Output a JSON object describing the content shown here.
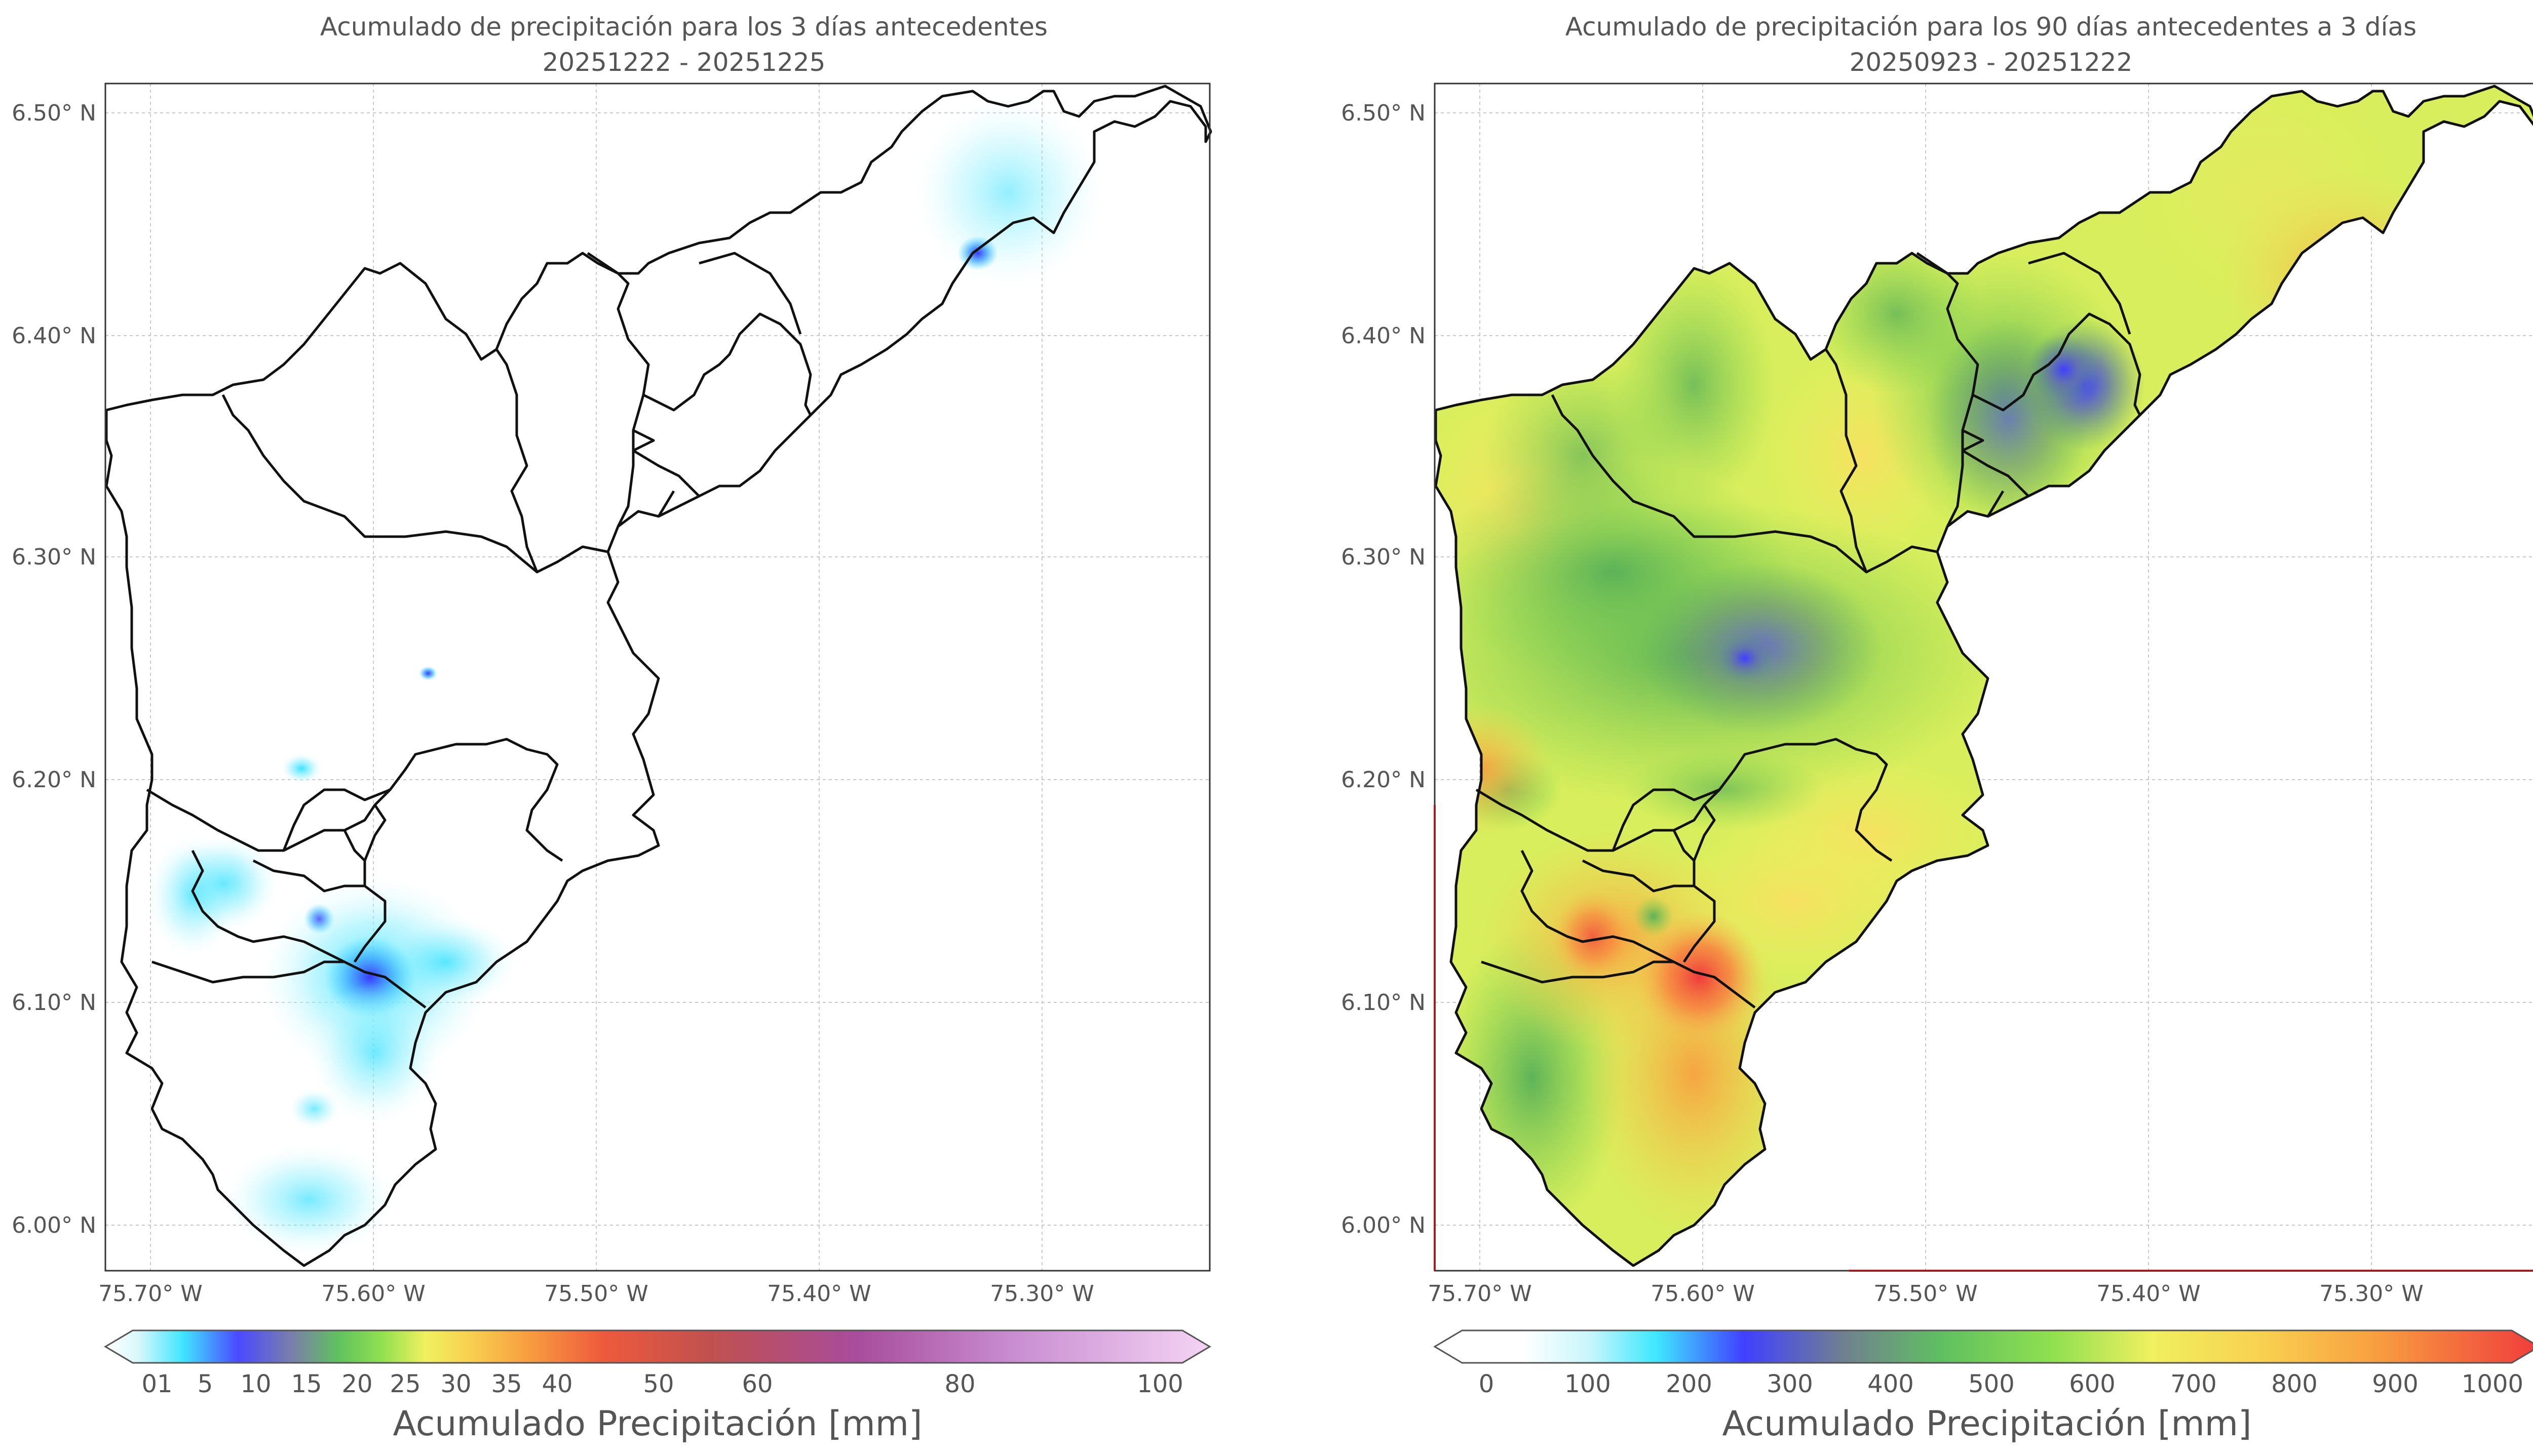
{
  "maps": [
    {
      "title_line1": "Acumulado de precipitación para los 3 días antecedentes",
      "title_line2": "20251222 - 20251225",
      "y_ticks": [
        "6.50° N",
        "6.40° N",
        "6.30° N",
        "6.20° N",
        "6.10° N",
        "6.00° N"
      ],
      "x_ticks": [
        "75.70° W",
        "75.60° W",
        "75.50° W",
        "75.40° W",
        "75.30° W"
      ],
      "colorbar_title": "Acumulado Precipitación [mm]",
      "colorbar_ticks": [
        "01",
        "5",
        "10",
        "15",
        "20",
        "25",
        "30",
        "35",
        "40",
        "50",
        "60",
        "80",
        "100"
      ],
      "colorbar_colors": [
        "#ffffff",
        "#cff6fb",
        "#3fe6ff",
        "#5050ff",
        "#8080a0",
        "#70c060",
        "#70e050",
        "#e0f060",
        "#f8f060",
        "#f8c040",
        "#f87030",
        "#e04848",
        "#b85050",
        "#a050a0",
        "#c080c8",
        "#f0d0f0"
      ]
    },
    {
      "title_line1": "Acumulado de precipitación para los 90 días antecedentes a 3 días",
      "title_line2": "20250923 - 20251222",
      "y_ticks": [
        "6.50° N",
        "6.40° N",
        "6.30° N",
        "6.20° N",
        "6.10° N",
        "6.00° N"
      ],
      "x_ticks": [
        "75.70° W",
        "75.60° W",
        "75.50° W",
        "75.40° W",
        "75.30° W"
      ],
      "colorbar_title": "Acumulado Precipitación [mm]",
      "colorbar_ticks": [
        "0",
        "100",
        "200",
        "300",
        "400",
        "500",
        "600",
        "700",
        "800",
        "900",
        "1000"
      ],
      "colorbar_colors": [
        "#ffffff",
        "#d8f8fb",
        "#40e8ff",
        "#4040ff",
        "#708090",
        "#60c060",
        "#80e050",
        "#e8f060",
        "#f8d050",
        "#f8a040",
        "#f04848"
      ]
    }
  ],
  "map_data": {
    "type": "map",
    "region_projection": "lat-lon",
    "lat_range": [
      5.98,
      6.52
    ],
    "lon_range": [
      -75.72,
      -75.22
    ],
    "variable": "Acumulado Precipitación",
    "units": "mm"
  }
}
